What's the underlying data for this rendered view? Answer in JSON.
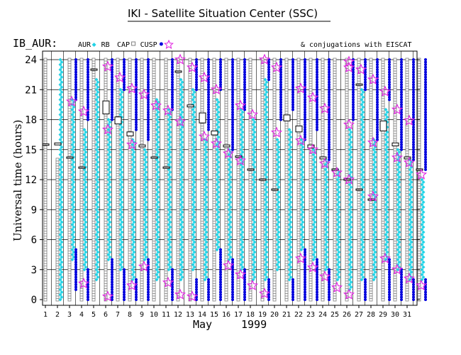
{
  "chart_data": {
    "type": "scatter",
    "title": "IKI - Satellite Situation Center (SSC)",
    "station_label": "IB_AUR:",
    "legend": [
      {
        "name": "AUR",
        "symbol": "diamond",
        "color": "#22d3e6"
      },
      {
        "name": "RB",
        "symbol": "none",
        "color": "#000000"
      },
      {
        "name": "CAP",
        "symbol": "square",
        "color": "#808080"
      },
      {
        "name": "CUSP",
        "symbol": "dot",
        "color": "#0000dd"
      }
    ],
    "star_legend": "& conjugations with EISCAT",
    "ylabel": "Universal time (hours)",
    "xlabel_month": "May",
    "xlabel_year": "1999",
    "ylim": [
      0,
      24
    ],
    "yticks": [
      0,
      3,
      6,
      9,
      12,
      15,
      18,
      21,
      24
    ],
    "xticks": [
      "1",
      "2",
      "3",
      "4",
      "5",
      "6",
      "7",
      "8",
      "9",
      "10",
      "11",
      "12",
      "13",
      "14",
      "15",
      "16",
      "17",
      "18",
      "19",
      "20",
      "21",
      "22",
      "23",
      "24",
      "25",
      "26",
      "27",
      "28",
      "29",
      "30",
      "31"
    ],
    "grid_hours": [
      3,
      6,
      9,
      12,
      15,
      18,
      21,
      24
    ],
    "days": [
      {
        "day": 1,
        "cap": [
          [
            0,
            24
          ]
        ],
        "aur": [],
        "cusp": [],
        "rb": [
          [
            15.5,
            15.5
          ]
        ],
        "stars": []
      },
      {
        "day": 2,
        "cap": [
          [
            0,
            14
          ]
        ],
        "aur": [
          [
            0,
            24
          ]
        ],
        "cusp": [],
        "rb": [
          [
            15.4,
            15.6
          ]
        ],
        "stars": []
      },
      {
        "day": 3,
        "cap": [
          [
            0,
            24
          ]
        ],
        "aur": [
          [
            4,
            20
          ]
        ],
        "cusp": [
          [
            1,
            5
          ],
          [
            20,
            24
          ]
        ],
        "rb": [
          [
            14.2,
            14.2
          ]
        ],
        "stars": [
          19.8
        ]
      },
      {
        "day": 4,
        "cap": [
          [
            0,
            24
          ]
        ],
        "aur": [
          [
            3,
            17
          ]
        ],
        "cusp": [
          [
            0,
            3
          ],
          [
            18,
            24
          ]
        ],
        "rb": [
          [
            13.2,
            13.2
          ]
        ],
        "stars": [
          1.6,
          18.8
        ]
      },
      {
        "day": 5,
        "cap": [
          [
            0,
            24
          ]
        ],
        "aur": [
          [
            2,
            22
          ]
        ],
        "cusp": [],
        "rb": [
          [
            23,
            23
          ]
        ],
        "stars": []
      },
      {
        "day": 6,
        "cap": [
          [
            0,
            24
          ]
        ],
        "aur": [
          [
            4,
            18
          ]
        ],
        "cusp": [
          [
            0,
            4
          ],
          [
            18,
            24
          ]
        ],
        "rb": [
          [
            18.5,
            19.8
          ]
        ],
        "stars": [
          0.3,
          17.0,
          23.3
        ]
      },
      {
        "day": 7,
        "cap": [
          [
            0,
            24
          ]
        ],
        "aur": [
          [
            3,
            21
          ]
        ],
        "cusp": [
          [
            0,
            3
          ],
          [
            21,
            24
          ]
        ],
        "rb": [
          [
            17.5,
            18.2
          ]
        ],
        "stars": [
          22.2
        ]
      },
      {
        "day": 8,
        "cap": [
          [
            0,
            24
          ]
        ],
        "aur": [
          [
            2,
            16
          ]
        ],
        "cusp": [
          [
            0,
            2
          ],
          [
            17,
            24
          ]
        ],
        "rb": [
          [
            16.3,
            16.7
          ]
        ],
        "stars": [
          1.4,
          15.5,
          21.1
        ]
      },
      {
        "day": 9,
        "cap": [
          [
            0,
            24
          ]
        ],
        "aur": [
          [
            4,
            15
          ]
        ],
        "cusp": [
          [
            0,
            4
          ],
          [
            16,
            24
          ]
        ],
        "rb": [
          [
            15.2,
            15.4
          ]
        ],
        "stars": [
          3.3,
          20.5
        ]
      },
      {
        "day": 10,
        "cap": [
          [
            0,
            24
          ]
        ],
        "aur": [
          [
            2,
            20
          ]
        ],
        "cusp": [],
        "rb": [
          [
            14.2,
            14.2
          ]
        ],
        "stars": [
          19.4
        ]
      },
      {
        "day": 11,
        "cap": [
          [
            0,
            24
          ]
        ],
        "aur": [
          [
            3,
            19
          ]
        ],
        "cusp": [
          [
            0,
            3
          ],
          [
            19,
            24
          ]
        ],
        "rb": [
          [
            13.2,
            13.2
          ]
        ],
        "stars": [
          1.7,
          18.9
        ]
      },
      {
        "day": 12,
        "cap": [
          [
            0,
            24
          ]
        ],
        "aur": [
          [
            2,
            22
          ]
        ],
        "cusp": [],
        "rb": [
          [
            22.8,
            22.8
          ]
        ],
        "stars": [
          0.5,
          17.8,
          24.0
        ]
      },
      {
        "day": 13,
        "cap": [
          [
            0,
            24
          ]
        ],
        "aur": [
          [
            3,
            21
          ]
        ],
        "cusp": [
          [
            0,
            2
          ],
          [
            21,
            24
          ]
        ],
        "rb": [
          [
            19.2,
            19.4
          ]
        ],
        "stars": [
          0.3,
          23.2
        ]
      },
      {
        "day": 14,
        "cap": [
          [
            0,
            24
          ]
        ],
        "aur": [
          [
            2,
            16
          ]
        ],
        "cusp": [
          [
            0,
            2
          ],
          [
            17,
            24
          ]
        ],
        "rb": [
          [
            17.6,
            18.6
          ]
        ],
        "stars": [
          16.3,
          22.2
        ]
      },
      {
        "day": 15,
        "cap": [
          [
            0,
            24
          ]
        ],
        "aur": [
          [
            5,
            20
          ]
        ],
        "cusp": [
          [
            0,
            5
          ],
          [
            21,
            24
          ]
        ],
        "rb": [
          [
            16.4,
            16.8
          ]
        ],
        "stars": [
          15.6,
          21.0
        ]
      },
      {
        "day": 16,
        "cap": [
          [
            0,
            24
          ]
        ],
        "aur": [
          [
            4,
            15
          ]
        ],
        "cusp": [
          [
            0,
            4
          ],
          [
            15,
            24
          ]
        ],
        "rb": [
          [
            15.2,
            15.4
          ]
        ],
        "stars": [
          3.4,
          14.6
        ]
      },
      {
        "day": 17,
        "cap": [
          [
            0,
            24
          ]
        ],
        "aur": [
          [
            3,
            19
          ]
        ],
        "cusp": [
          [
            0,
            3
          ],
          [
            19,
            24
          ]
        ],
        "rb": [
          [
            14.3,
            14.3
          ]
        ],
        "stars": [
          2.5,
          13.9,
          19.4
        ]
      },
      {
        "day": 18,
        "cap": [
          [
            0,
            24
          ]
        ],
        "aur": [
          [
            2,
            18
          ]
        ],
        "cusp": [],
        "rb": [
          [
            13.0,
            13.0
          ]
        ],
        "stars": [
          1.4,
          18.5
        ]
      },
      {
        "day": 19,
        "cap": [
          [
            0,
            24
          ]
        ],
        "aur": [
          [
            2,
            22
          ]
        ],
        "cusp": [
          [
            0,
            2
          ],
          [
            22,
            24
          ]
        ],
        "rb": [
          [
            12.0,
            12.0
          ]
        ],
        "stars": [
          0.6,
          24.0
        ]
      },
      {
        "day": 20,
        "cap": [
          [
            0,
            24
          ]
        ],
        "aur": [
          [
            3,
            16
          ]
        ],
        "cusp": [
          [
            18,
            24
          ]
        ],
        "rb": [
          [
            11.0,
            11.0
          ]
        ],
        "stars": [
          16.7,
          23.2
        ]
      },
      {
        "day": 21,
        "cap": [
          [
            0,
            24
          ]
        ],
        "aur": [
          [
            2,
            17
          ]
        ],
        "cusp": [
          [
            0,
            2
          ],
          [
            19,
            24
          ]
        ],
        "rb": [
          [
            17.8,
            18.4
          ]
        ],
        "stars": []
      },
      {
        "day": 22,
        "cap": [
          [
            0,
            24
          ]
        ],
        "aur": [
          [
            5,
            16
          ]
        ],
        "cusp": [
          [
            0,
            5
          ],
          [
            16,
            24
          ]
        ],
        "rb": [
          [
            16.7,
            17.3
          ]
        ],
        "stars": [
          4.1,
          15.9,
          21.1
        ]
      },
      {
        "day": 23,
        "cap": [
          [
            0,
            24
          ]
        ],
        "aur": [
          [
            4,
            15
          ]
        ],
        "cusp": [
          [
            0,
            4
          ],
          [
            17,
            24
          ]
        ],
        "rb": [
          [
            15.1,
            15.4
          ]
        ],
        "stars": [
          3.2,
          15.0,
          20.2
        ]
      },
      {
        "day": 24,
        "cap": [
          [
            0,
            24
          ]
        ],
        "aur": [
          [
            3,
            14
          ]
        ],
        "cusp": [
          [
            0,
            3
          ],
          [
            14,
            24
          ]
        ],
        "rb": [
          [
            14.0,
            14.2
          ]
        ],
        "stars": [
          2.3,
          13.6,
          19.1
        ]
      },
      {
        "day": 25,
        "cap": [
          [
            0,
            24
          ]
        ],
        "aur": [
          [
            2,
            13
          ]
        ],
        "cusp": [],
        "rb": [
          [
            13.0,
            13.0
          ]
        ],
        "stars": [
          1.2,
          12.7
        ]
      },
      {
        "day": 26,
        "cap": [
          [
            0,
            24
          ]
        ],
        "aur": [
          [
            1,
            17
          ]
        ],
        "cusp": [
          [
            18,
            24
          ]
        ],
        "rb": [
          [
            12.0,
            12.0
          ]
        ],
        "stars": [
          0.5,
          12.0,
          17.5,
          23.2,
          23.8
        ]
      },
      {
        "day": 27,
        "cap": [
          [
            0,
            24
          ]
        ],
        "aur": [
          [
            2,
            21
          ]
        ],
        "cusp": [
          [
            0,
            2
          ],
          [
            21,
            24
          ]
        ],
        "rb": [
          [
            11.0,
            11.0
          ],
          [
            21.5,
            21.5
          ]
        ],
        "stars": [
          23.0
        ]
      },
      {
        "day": 28,
        "cap": [
          [
            0,
            24
          ]
        ],
        "aur": [
          [
            2,
            16
          ]
        ],
        "cusp": [
          [
            16,
            24
          ]
        ],
        "rb": [
          [
            10.0,
            10.0
          ]
        ],
        "stars": [
          10.3,
          15.7,
          22.0
        ]
      },
      {
        "day": 29,
        "cap": [
          [
            0,
            24
          ]
        ],
        "aur": [
          [
            4,
            19
          ]
        ],
        "cusp": [
          [
            0,
            4
          ],
          [
            20,
            24
          ]
        ],
        "rb": [
          [
            16.8,
            17.8
          ]
        ],
        "stars": [
          4.1,
          20.8
        ]
      },
      {
        "day": 30,
        "cap": [
          [
            0,
            24
          ]
        ],
        "aur": [
          [
            3,
            15
          ]
        ],
        "cusp": [
          [
            0,
            3
          ],
          [
            15,
            24
          ]
        ],
        "rb": [
          [
            15.3,
            15.6
          ]
        ],
        "stars": [
          3.0,
          14.2,
          19.0
        ]
      },
      {
        "day": 31,
        "cap": [
          [
            0,
            24
          ]
        ],
        "aur": [
          [
            2,
            14
          ]
        ],
        "cusp": [
          [
            0,
            2
          ],
          [
            14,
            24
          ]
        ],
        "rb": [
          [
            14.0,
            14.2
          ]
        ],
        "stars": [
          2.1,
          13.7,
          17.9
        ]
      },
      {
        "day": 32,
        "cap": [
          [
            0,
            24
          ]
        ],
        "aur": [
          [
            2,
            12
          ]
        ],
        "cusp": [
          [
            0,
            2
          ],
          [
            13,
            24
          ]
        ],
        "rb": [
          [
            13.0,
            13.0
          ]
        ],
        "stars": [
          1.4,
          12.5
        ]
      }
    ],
    "colors": {
      "aur": "#22d3e6",
      "cap": "#7f7f7f",
      "cusp": "#0000dd",
      "star": "#e020e0",
      "rb": "#000000"
    }
  }
}
